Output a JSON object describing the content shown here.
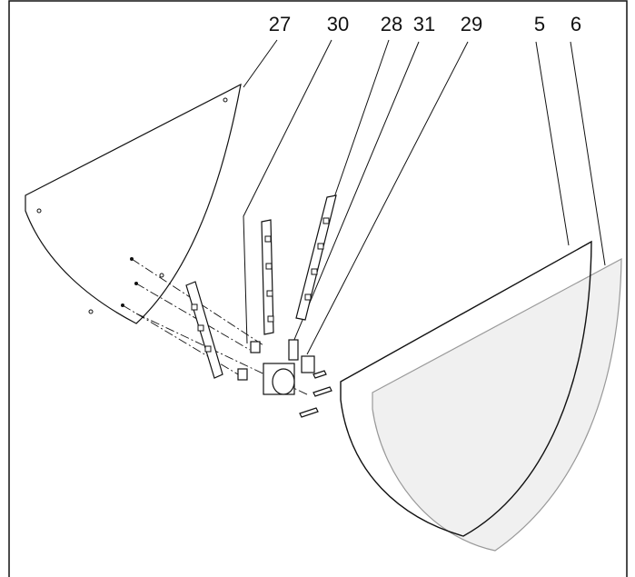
{
  "callouts": [
    "27",
    "30",
    "28",
    "31",
    "29",
    "5",
    "6"
  ]
}
